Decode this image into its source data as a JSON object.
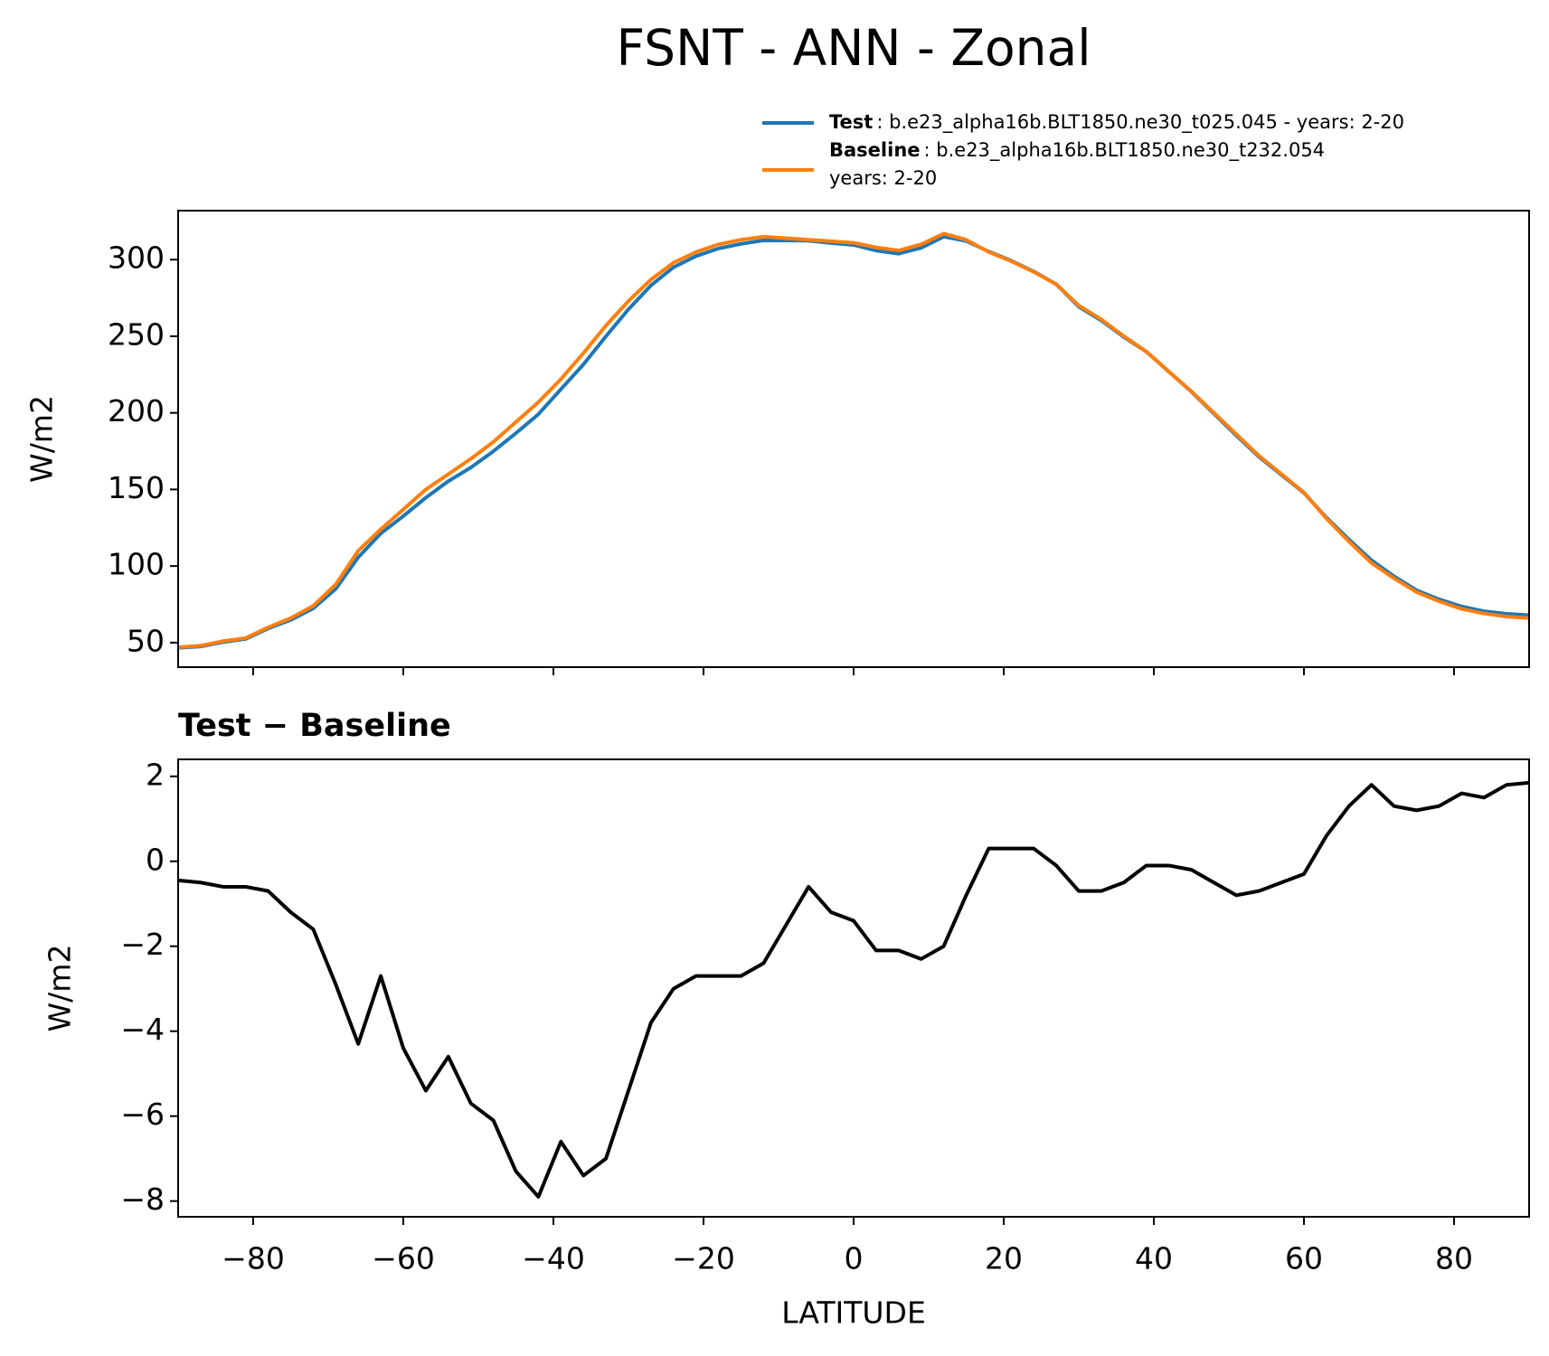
{
  "title": "FSNT - ANN - Zonal",
  "chart_data": [
    {
      "type": "line",
      "ylabel": "W/m2",
      "x": [
        -90,
        -87,
        -84,
        -81,
        -78,
        -75,
        -72,
        -69,
        -66,
        -63,
        -60,
        -57,
        -54,
        -51,
        -48,
        -45,
        -42,
        -39,
        -36,
        -33,
        -30,
        -27,
        -24,
        -21,
        -18,
        -15,
        -12,
        -9,
        -6,
        -3,
        0,
        3,
        6,
        9,
        12,
        15,
        18,
        21,
        24,
        27,
        30,
        33,
        36,
        39,
        42,
        45,
        48,
        51,
        54,
        57,
        60,
        63,
        66,
        69,
        72,
        75,
        78,
        81,
        84,
        87,
        90
      ],
      "series": [
        {
          "name": "Test",
          "legend_text": [
            ": b.e23_alpha16b.BLT1850.ne30_t025.045 - years: 2-20"
          ],
          "color": "#1f77b4",
          "values": [
            46.6,
            47.5,
            50.4,
            52.4,
            59.3,
            64.8,
            72.4,
            85.1,
            105.7,
            121.3,
            132.6,
            144.6,
            155.4,
            164.3,
            174.9,
            186.7,
            199.1,
            215.4,
            231.6,
            250,
            267.6,
            283.2,
            295,
            302.3,
            307.3,
            310.3,
            312.6,
            312.5,
            312.4,
            310.8,
            309.6,
            305.9,
            303.9,
            307.7,
            315,
            312.2,
            305.3,
            299.3,
            292.3,
            283.9,
            269.3,
            260.3,
            249.5,
            239.9,
            226.9,
            213.8,
            199.5,
            185.2,
            171.3,
            159.5,
            147.7,
            131.6,
            117.3,
            103.8,
            93.3,
            84.2,
            78.3,
            73.6,
            70.5,
            68.8,
            67.9
          ]
        },
        {
          "name": "Baseline",
          "legend_text": [
            ": b.e23_alpha16b.BLT1850.ne30_t232.054",
            "years: 2-20"
          ],
          "color": "#ff7f0e",
          "values": [
            47,
            48,
            51,
            53,
            60,
            66,
            74,
            88,
            110,
            124,
            137,
            150,
            160,
            170,
            181,
            194,
            207,
            222,
            239,
            257,
            273,
            287,
            298,
            305,
            310,
            313,
            315,
            314,
            313,
            312,
            311,
            308,
            306,
            310,
            317,
            313,
            305,
            299,
            292,
            284,
            270,
            261,
            250,
            240,
            227,
            214,
            200,
            186,
            172,
            160,
            148,
            131,
            116,
            102,
            92,
            83,
            77,
            72,
            69,
            67,
            66
          ]
        }
      ],
      "xlim": [
        -90,
        90
      ],
      "xticks": [
        -80,
        -60,
        -40,
        -20,
        0,
        20,
        40,
        60,
        80
      ],
      "ylim": [
        34,
        332
      ],
      "yticks": [
        50,
        100,
        150,
        200,
        250,
        300
      ]
    },
    {
      "type": "line",
      "title": "Test − Baseline",
      "xlabel": "LATITUDE",
      "ylabel": "W/m2",
      "x": [
        -90,
        -87,
        -84,
        -81,
        -78,
        -75,
        -72,
        -69,
        -66,
        -63,
        -60,
        -57,
        -54,
        -51,
        -48,
        -45,
        -42,
        -39,
        -36,
        -33,
        -30,
        -27,
        -24,
        -21,
        -18,
        -15,
        -12,
        -9,
        -6,
        -3,
        0,
        3,
        6,
        9,
        12,
        15,
        18,
        21,
        24,
        27,
        30,
        33,
        36,
        39,
        42,
        45,
        48,
        51,
        54,
        57,
        60,
        63,
        66,
        69,
        72,
        75,
        78,
        81,
        84,
        87,
        90
      ],
      "series": [
        {
          "color": "#000000",
          "values": [
            -0.45,
            -0.5,
            -0.6,
            -0.6,
            -0.7,
            -1.2,
            -1.6,
            -2.9,
            -4.3,
            -2.7,
            -4.4,
            -5.4,
            -4.6,
            -5.7,
            -6.1,
            -7.3,
            -7.9,
            -6.6,
            -7.4,
            -7.0,
            -5.4,
            -3.8,
            -3.0,
            -2.7,
            -2.7,
            -2.7,
            -2.4,
            -1.5,
            -0.6,
            -1.2,
            -1.4,
            -2.1,
            -2.1,
            -2.3,
            -2.0,
            -0.8,
            0.3,
            0.3,
            0.3,
            -0.1,
            -0.7,
            -0.7,
            -0.5,
            -0.1,
            -0.1,
            -0.2,
            -0.5,
            -0.8,
            -0.7,
            -0.5,
            -0.3,
            0.6,
            1.3,
            1.8,
            1.3,
            1.2,
            1.3,
            1.6,
            1.5,
            1.8,
            1.85
          ]
        }
      ],
      "xlim": [
        -90,
        90
      ],
      "xticks": [
        {
          "value": -80,
          "label": "−80"
        },
        {
          "value": -60,
          "label": "−60"
        },
        {
          "value": -40,
          "label": "−40"
        },
        {
          "value": -20,
          "label": "−20"
        },
        0,
        20,
        40,
        60,
        80
      ],
      "ylim": [
        -8.37,
        2.4
      ],
      "yticks": [
        {
          "value": -8,
          "label": "−8"
        },
        {
          "value": -6,
          "label": "−6"
        },
        {
          "value": -4,
          "label": "−4"
        },
        {
          "value": -2,
          "label": "−2"
        },
        0,
        2
      ]
    }
  ]
}
